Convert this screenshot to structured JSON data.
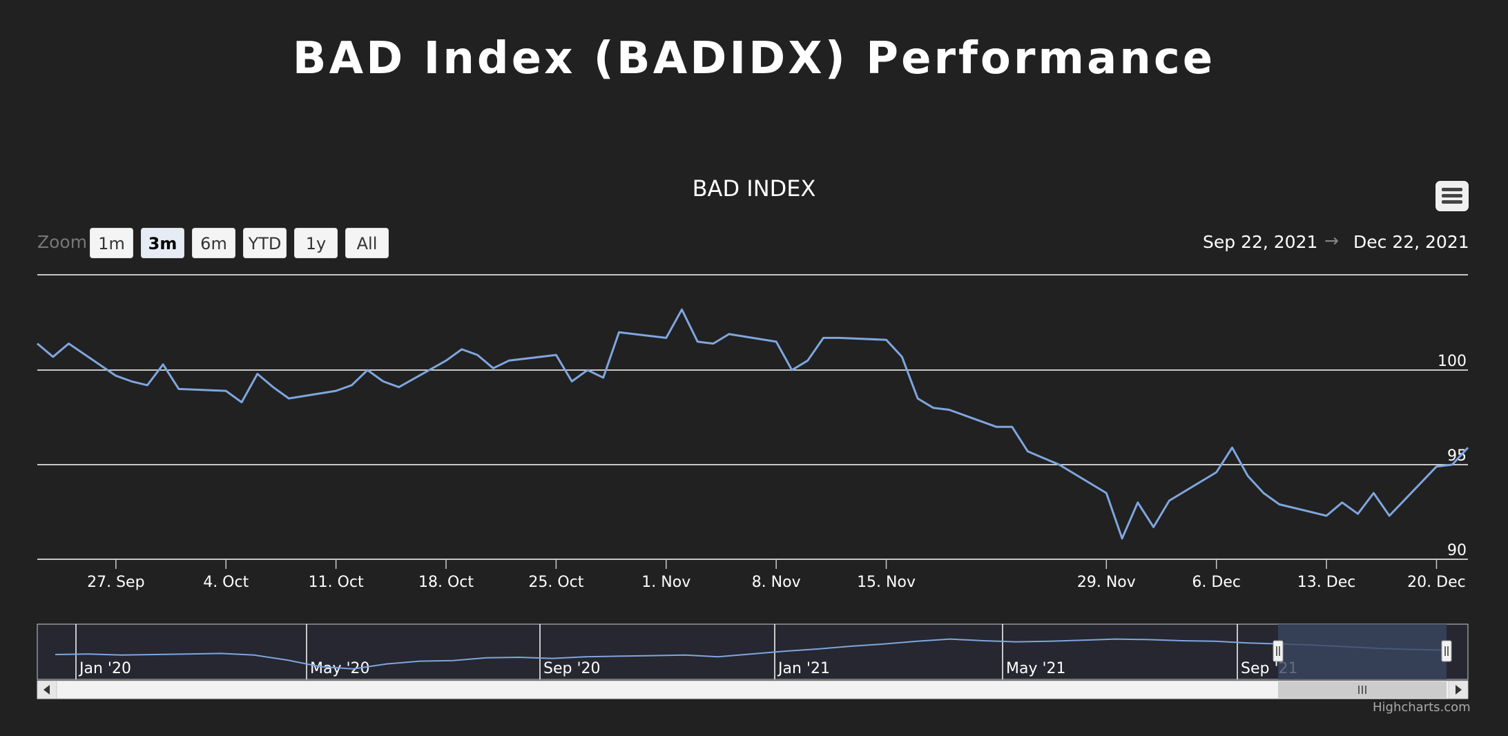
{
  "page_title": "BAD Index (BADIDX) Performance",
  "chart": {
    "title": "BAD INDEX",
    "credit": "Highcharts.com",
    "menu_icon": "hamburger-menu-icon"
  },
  "zoom": {
    "label": "Zoom",
    "buttons": [
      "1m",
      "3m",
      "6m",
      "YTD",
      "1y",
      "All"
    ],
    "selected": "3m"
  },
  "range": {
    "from": "Sep 22, 2021",
    "arrow": "→",
    "to": "Dec 22, 2021"
  },
  "colors": {
    "background": "#212121",
    "series": "#7fa6df",
    "grid": "#ffffff",
    "navigator_mask": "#3a4660"
  },
  "navigator": {
    "labels": [
      "Jan '20",
      "May '20",
      "Sep '20",
      "Jan '21",
      "May '21",
      "Sep '21"
    ],
    "series": [
      99.5,
      99.6,
      99.4,
      99.5,
      99.6,
      99.7,
      99.4,
      98.5,
      97.3,
      96.9,
      97.8,
      98.3,
      98.4,
      98.9,
      99.0,
      98.8,
      99.1,
      99.2,
      99.3,
      99.4,
      99.1,
      99.6,
      100.1,
      100.5,
      101.0,
      101.4,
      101.9,
      102.3,
      102.0,
      101.8,
      101.9,
      102.1,
      102.3,
      102.2,
      102.0,
      101.9,
      101.6,
      101.4,
      101.2,
      100.9,
      100.6,
      100.4,
      100.3
    ]
  },
  "chart_data": {
    "type": "line",
    "title": "BAD INDEX",
    "xlabel": "",
    "ylabel": "",
    "xlim": [
      "2021-09-22",
      "2021-12-22"
    ],
    "ylim": [
      90,
      105
    ],
    "yticks": [
      90,
      95,
      100
    ],
    "xtick_labels": [
      "27. Sep",
      "4. Oct",
      "11. Oct",
      "18. Oct",
      "25. Oct",
      "1. Nov",
      "8. Nov",
      "15. Nov",
      "29. Nov",
      "6. Dec",
      "13. Dec",
      "20. Dec"
    ],
    "xtick_dates": [
      "2021-09-27",
      "2021-10-04",
      "2021-10-11",
      "2021-10-18",
      "2021-10-25",
      "2021-11-01",
      "2021-11-08",
      "2021-11-15",
      "2021-11-29",
      "2021-12-06",
      "2021-12-13",
      "2021-12-20"
    ],
    "grid": true,
    "legend": "none",
    "series": [
      {
        "x": [
          "2021-09-22",
          "2021-09-23",
          "2021-09-24",
          "2021-09-27",
          "2021-09-28",
          "2021-09-29",
          "2021-09-30",
          "2021-10-01",
          "2021-10-04",
          "2021-10-05",
          "2021-10-06",
          "2021-10-07",
          "2021-10-08",
          "2021-10-11",
          "2021-10-12",
          "2021-10-13",
          "2021-10-14",
          "2021-10-15",
          "2021-10-18",
          "2021-10-19",
          "2021-10-20",
          "2021-10-21",
          "2021-10-22",
          "2021-10-25",
          "2021-10-26",
          "2021-10-27",
          "2021-10-28",
          "2021-10-29",
          "2021-11-01",
          "2021-11-02",
          "2021-11-03",
          "2021-11-04",
          "2021-11-05",
          "2021-11-08",
          "2021-11-09",
          "2021-11-10",
          "2021-11-11",
          "2021-11-12",
          "2021-11-15",
          "2021-11-16",
          "2021-11-17",
          "2021-11-18",
          "2021-11-19",
          "2021-11-22",
          "2021-11-23",
          "2021-11-24",
          "2021-11-26",
          "2021-11-29",
          "2021-11-30",
          "2021-12-01",
          "2021-12-02",
          "2021-12-03",
          "2021-12-06",
          "2021-12-07",
          "2021-12-08",
          "2021-12-09",
          "2021-12-10",
          "2021-12-13",
          "2021-12-14",
          "2021-12-15",
          "2021-12-16",
          "2021-12-17",
          "2021-12-20",
          "2021-12-21",
          "2021-12-22"
        ],
        "y": [
          101.4,
          100.7,
          101.4,
          99.7,
          99.4,
          99.2,
          100.3,
          99.0,
          98.9,
          98.3,
          99.8,
          99.1,
          98.5,
          98.9,
          99.2,
          100.0,
          99.4,
          99.1,
          100.5,
          101.1,
          100.8,
          100.1,
          100.5,
          100.8,
          99.4,
          100.0,
          99.6,
          102.0,
          101.7,
          103.2,
          101.5,
          101.4,
          101.9,
          101.5,
          100.0,
          100.5,
          101.7,
          101.7,
          101.6,
          100.7,
          98.5,
          98.0,
          97.9,
          97.0,
          97.0,
          95.7,
          95.0,
          93.5,
          91.1,
          93.0,
          91.7,
          93.1,
          94.6,
          95.9,
          94.4,
          93.5,
          92.9,
          92.3,
          93.0,
          92.4,
          93.5,
          92.3,
          94.9,
          95.0,
          95.9
        ]
      }
    ]
  }
}
